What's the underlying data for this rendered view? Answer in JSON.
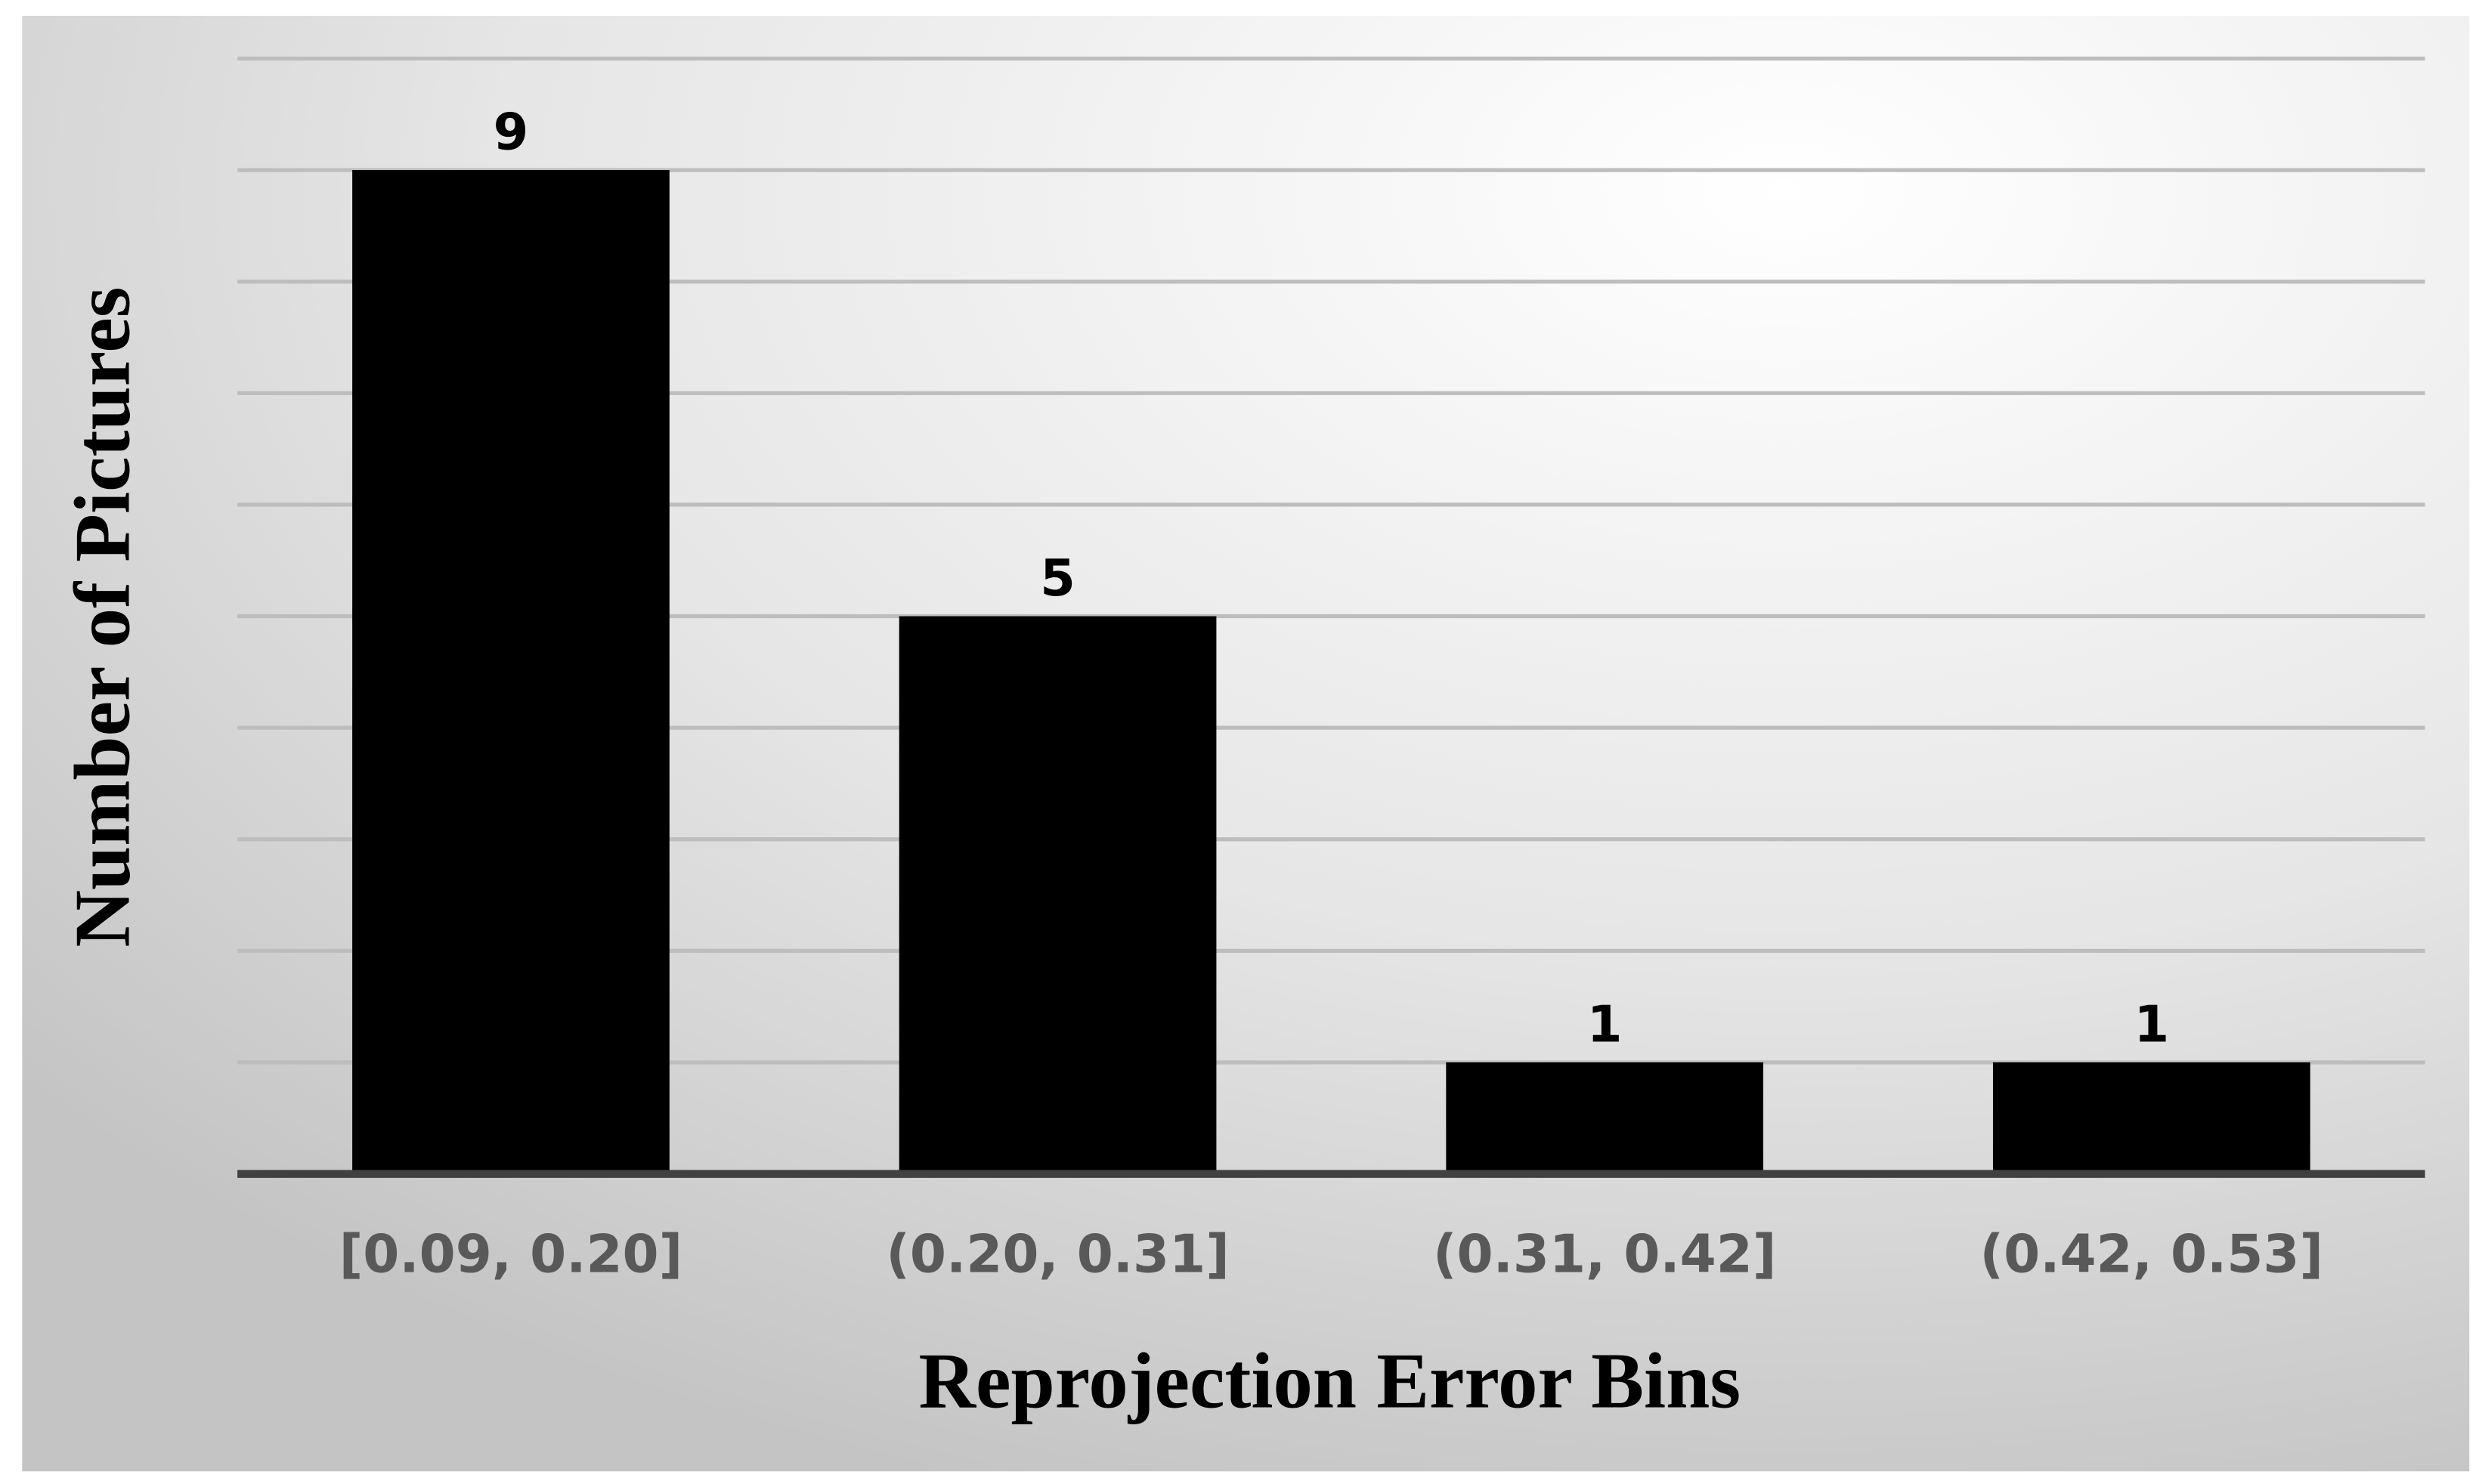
{
  "chart_data": {
    "type": "bar",
    "x_label": "Reprojection Error Bins",
    "y_label": "Number of Pictures",
    "categories": [
      "[0.09, 0.20]",
      "(0.20, 0.31]",
      "(0.31, 0.42]",
      "(0.42, 0.53]"
    ],
    "values": [
      9,
      5,
      1,
      1
    ],
    "color": "#000000",
    "ylim": [
      0,
      10
    ],
    "yticks": [
      0,
      1,
      2,
      3,
      4,
      5,
      6,
      7,
      8,
      9,
      10
    ],
    "show_ytick_labels": false,
    "grid": true
  }
}
